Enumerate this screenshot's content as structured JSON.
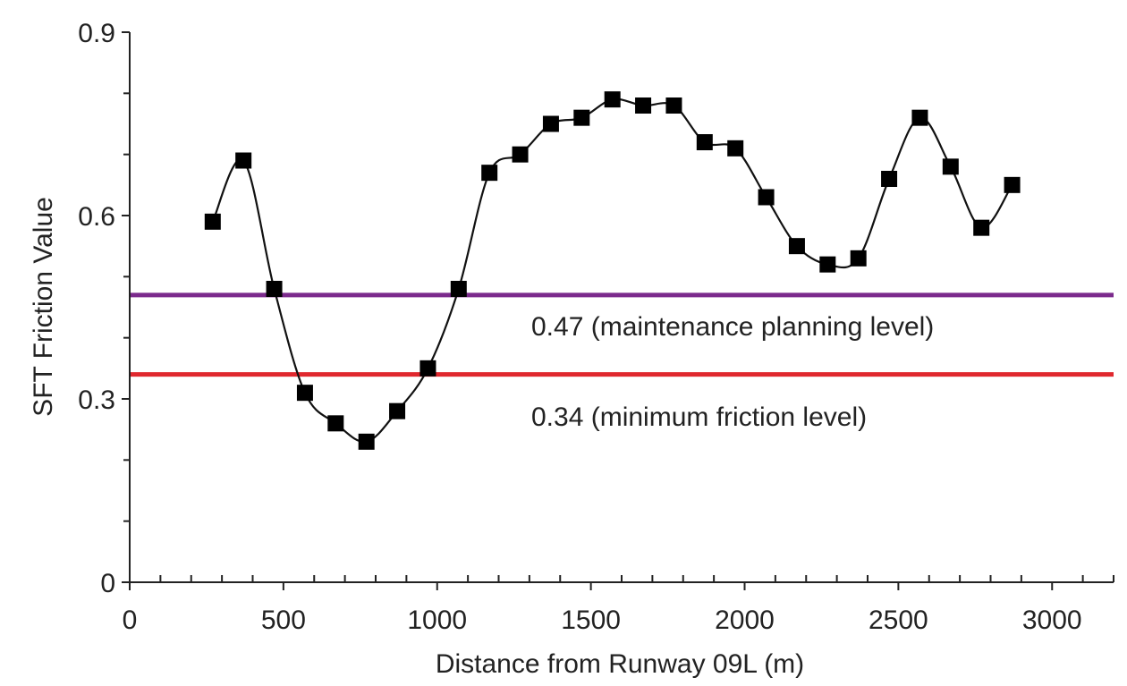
{
  "chart_data": {
    "type": "line",
    "xlabel": "Distance from Runway 09L (m)",
    "ylabel": "SFT Friction Value",
    "xlim": [
      0,
      3200
    ],
    "ylim": [
      0,
      0.9
    ],
    "x_ticks": [
      "0",
      "500",
      "1000",
      "1500",
      "2000",
      "2500",
      "3000"
    ],
    "y_ticks": [
      "0",
      "0.3",
      "0.6",
      "0.9"
    ],
    "grid": false,
    "series": [
      {
        "marker": "square",
        "color": "#000000",
        "x": [
          270,
          370,
          470,
          570,
          670,
          770,
          870,
          970,
          1070,
          1170,
          1270,
          1370,
          1470,
          1570,
          1670,
          1770,
          1870,
          1970,
          2070,
          2170,
          2270,
          2370,
          2470,
          2570,
          2670,
          2770,
          2870
        ],
        "y": [
          0.59,
          0.69,
          0.48,
          0.31,
          0.26,
          0.23,
          0.28,
          0.35,
          0.48,
          0.67,
          0.7,
          0.75,
          0.76,
          0.79,
          0.78,
          0.78,
          0.72,
          0.71,
          0.63,
          0.55,
          0.52,
          0.53,
          0.66,
          0.76,
          0.68,
          0.58,
          0.65
        ]
      }
    ],
    "reference_lines": [
      {
        "y": 0.47,
        "color": "#7b2a8c",
        "label": "0.47 (maintenance planning level)"
      },
      {
        "y": 0.34,
        "color": "#e0282e",
        "label": "0.34 (minimum friction level)"
      }
    ]
  }
}
